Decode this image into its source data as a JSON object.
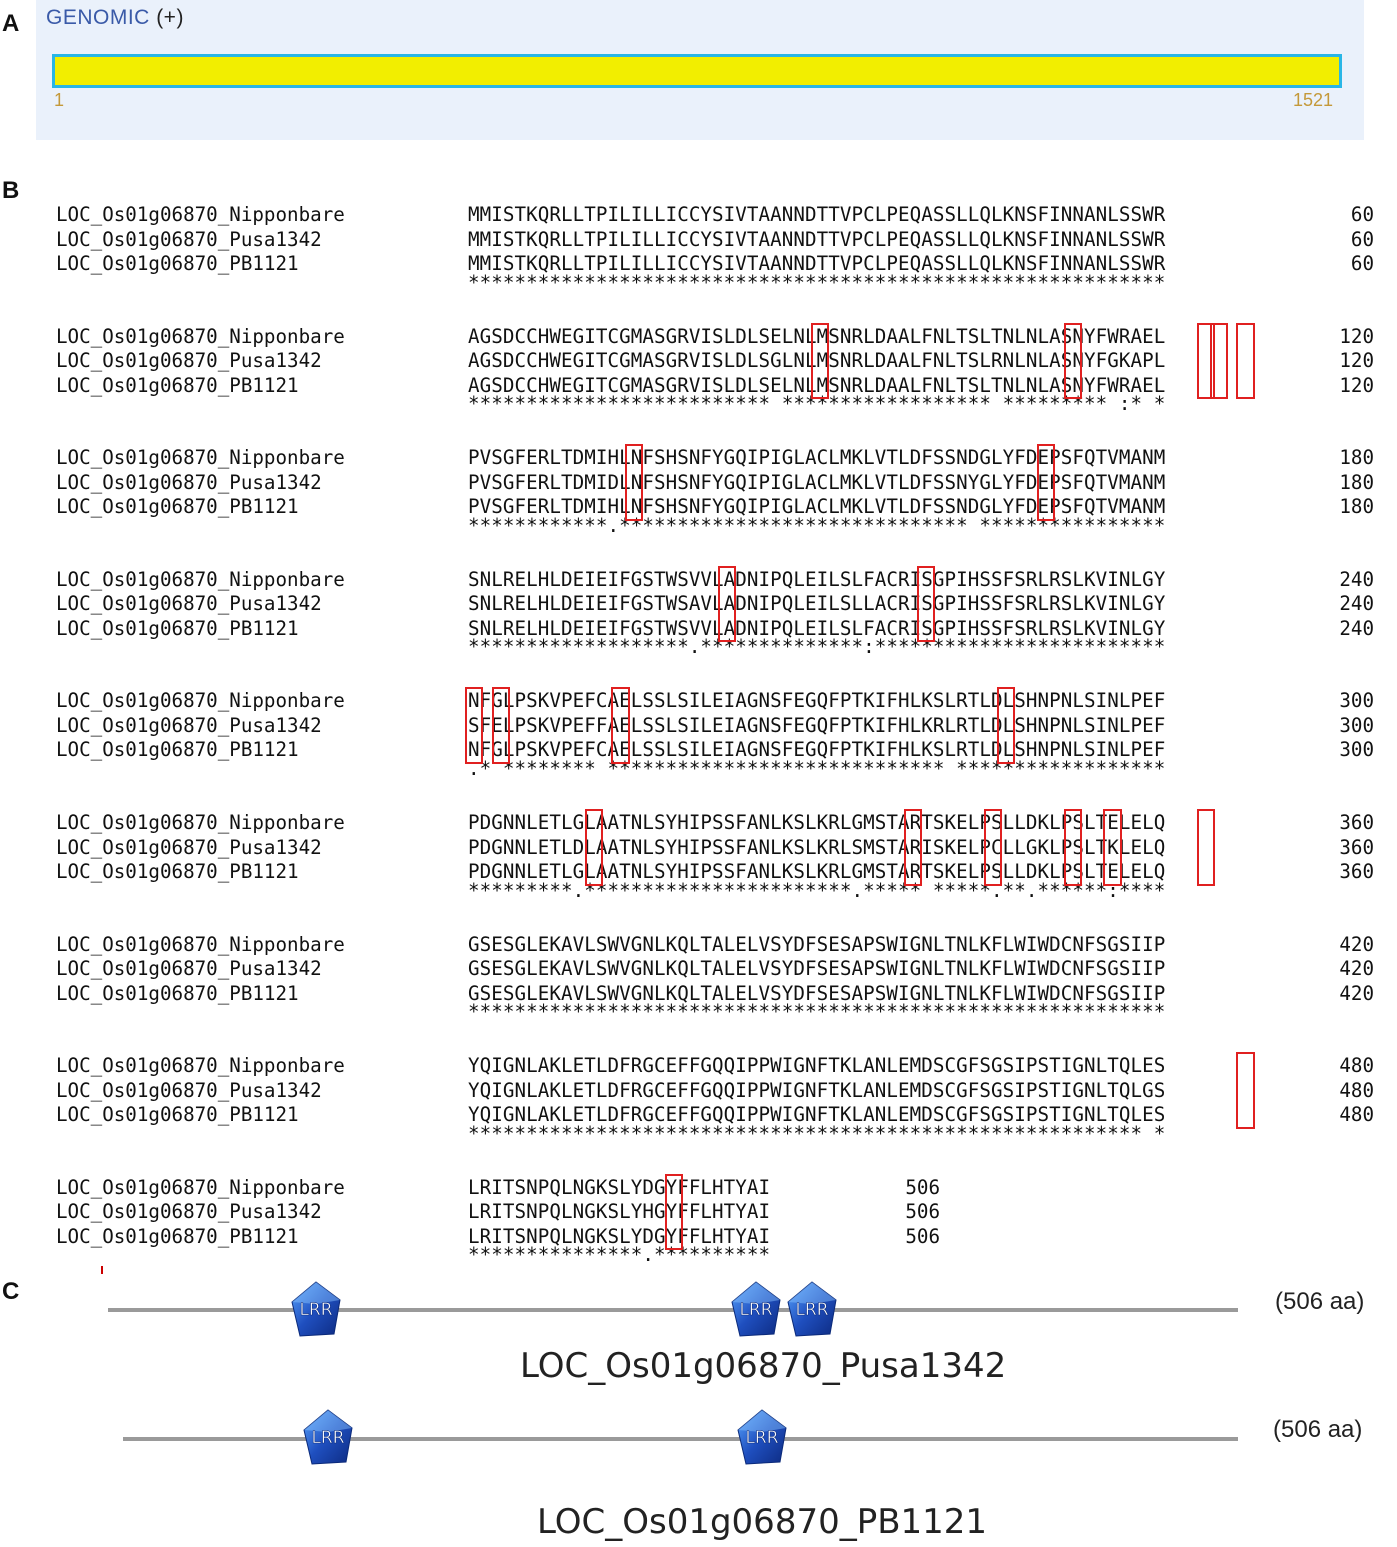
{
  "panel_labels": {
    "a": "A",
    "b": "B",
    "c": "C"
  },
  "panel_a": {
    "title": "GENOMIC",
    "strand": "(+)",
    "bar_color": "#f2ee00",
    "border_color": "#29b6e6",
    "start": "1",
    "end": "1521"
  },
  "panel_b": {
    "names": [
      "LOC_Os01g06870_Nipponbare",
      "LOC_Os01g06870_Pusa1342",
      "LOC_Os01g06870_PB1121"
    ],
    "box_color": "#e02020",
    "blocks": [
      {
        "seqs": [
          "MMISTKQRLLTPILILLICCYSIVTAANNDTTVPCLPEQASSLLQLKNSFINNANLSSWR",
          "MMISTKQRLLTPILILLICCYSIVTAANNDTTVPCLPEQASSLLQLKNSFINNANLSSWR",
          "MMISTKQRLLTPILILLICCYSIVTAANNDTTVPCLPEQASSLLQLKNSFINNANLSSWR"
        ],
        "cons": "************************************************************",
        "num": "60"
      },
      {
        "seqs": [
          "AGSDCCHWEGITCGMASGRVISLDLSELNLMSNRLDAALFNLTSLTNLNLASNYFWRAEL",
          "AGSDCCHWEGITCGMASGRVISLDLSGLNLMSNRLDAALFNLTSLRNLNLASNYFGKAPL",
          "AGSDCCHWEGITCGMASGRVISLDLSELNLMSNRLDAALFNLTSLTNLNLASNYFWRAEL"
        ],
        "cons": "************************** ****************** ********* :* *",
        "num": "120"
      },
      {
        "seqs": [
          "PVSGFERLTDMIHLNFSHSNFYGQIPIGLACLMKLVTLDFSSNDGLYFDEPSFQTVMANM",
          "PVSGFERLTDMIDLNFSHSNFYGQIPIGLACLMKLVTLDFSSNYGLYFDEPSFQTVMANM",
          "PVSGFERLTDMIHLNFSHSNFYGQIPIGLACLMKLVTLDFSSNDGLYFDEPSFQTVMANM"
        ],
        "cons": "************.****************************** ****************",
        "num": "180"
      },
      {
        "seqs": [
          "SNLRELHLDEIEIFGSTWSVVLADNIPQLEILSLFACRISGPIHSSFSRLRSLKVINLGY",
          "SNLRELHLDEIEIFGSTWSAVLADNIPQLEILSLLACRISGPIHSSFSRLRSLKVINLGY",
          "SNLRELHLDEIEIFGSTWSVVLADNIPQLEILSLFACRISGPIHSSFSRLRSLKVINLGY"
        ],
        "cons": "*******************.**************:*************************",
        "num": "240"
      },
      {
        "seqs": [
          "NFGLPSKVPEFCAELSSLSILEIAGNSFEGQFPTKIFHLKSLRTLDLSHNPNLSINLPEF",
          "SFELPSKVPEFFAELSSLSILEIAGNSFEGQFPTKIFHLKRLRTLDLSHNPNLSINLPEF",
          "NFGLPSKVPEFCAELSSLSILEIAGNSFEGQFPTKIFHLKSLRTLDLSHNPNLSINLPEF"
        ],
        "cons": ".* ******** ***************************** ******************",
        "num": "300"
      },
      {
        "seqs": [
          "PDGNNLETLGLAATNLSYHIPSSFANLKSLKRLGMSTARTSKELPSLLDKLPSLTELELQ",
          "PDGNNLETLDLAATNLSYHIPSSFANLKSLKRLSMSTARISKELPCLLGKLPSLTKLELQ",
          "PDGNNLETLGLAATNLSYHIPSSFANLKSLKRLGMSTARTSKELPSLLDKLPSLTELELQ"
        ],
        "cons": "*********.***********************.***** *****.**.******:****",
        "num": "360"
      },
      {
        "seqs": [
          "GSESGLEKAVLSWVGNLKQLTALELVSYDFSESAPSWIGNLTNLKFLWIWDCNFSGSIIP",
          "GSESGLEKAVLSWVGNLKQLTALELVSYDFSESAPSWIGNLTNLKFLWIWDCNFSGSIIP",
          "GSESGLEKAVLSWVGNLKQLTALELVSYDFSESAPSWIGNLTNLKFLWIWDCNFSGSIIP"
        ],
        "cons": "************************************************************",
        "num": "420"
      },
      {
        "seqs": [
          "YQIGNLAKLETLDFRGCEFFGQQIPPWIGNFTKLANLEMDSCGFSGSIPSTIGNLTQLES",
          "YQIGNLAKLETLDFRGCEFFGQQIPPWIGNFTKLANLEMDSCGFSGSIPSTIGNLTQLGS",
          "YQIGNLAKLETLDFRGCEFFGQQIPPWIGNFTKLANLEMDSCGFSGSIPSTIGNLTQLES"
        ],
        "cons": "********************************************************** *",
        "num": "480"
      },
      {
        "seqs": [
          "LRITSNPQLNGKSLYDGYFFLHTYAI",
          "LRITSNPQLNGKSLYHGYFFLHTYAI",
          "LRITSNPQLNGKSLYDGYFFLHTYAI"
        ],
        "cons": "***************.**********",
        "num": "506"
      }
    ]
  },
  "panel_c": {
    "domain_label": "LRR",
    "domain_color": "#1f4fbf",
    "proteins": [
      {
        "name": "LOC_Os01g06870_Pusa1342",
        "length_label": "(506 aa)"
      },
      {
        "name": "LOC_Os01g06870_PB1121",
        "length_label": "(506 aa)"
      }
    ]
  }
}
